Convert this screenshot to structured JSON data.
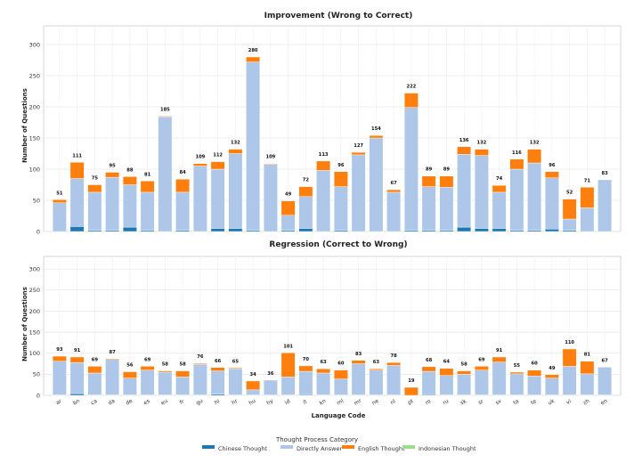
{
  "chart_data": [
    {
      "type": "bar",
      "stacked": true,
      "title": "Improvement (Wrong to Correct)",
      "xlabel": "",
      "ylabel": "Number of Questions",
      "ylim": [
        0,
        330
      ],
      "yticks": [
        0,
        50,
        100,
        150,
        200,
        250,
        300
      ],
      "grid": true,
      "categories": [
        "ar",
        "bn",
        "ca",
        "da",
        "de",
        "es",
        "eu",
        "fr",
        "gu",
        "hi",
        "hr",
        "hu",
        "hy",
        "id",
        "it",
        "kn",
        "ml",
        "mr",
        "ne",
        "nl",
        "pt",
        "ro",
        "ru",
        "sk",
        "sr",
        "sv",
        "ta",
        "te",
        "uk",
        "vi",
        "zh",
        "en"
      ],
      "totals": [
        51,
        111,
        75,
        95,
        88,
        81,
        185,
        84,
        109,
        112,
        132,
        280,
        109,
        49,
        72,
        113,
        96,
        127,
        154,
        67,
        222,
        89,
        89,
        136,
        132,
        74,
        116,
        132,
        96,
        52,
        71,
        83
      ],
      "series": [
        {
          "name": "Chinese Thought",
          "values": [
            1,
            8,
            2,
            2,
            7,
            2,
            1,
            2,
            1,
            5,
            5,
            2,
            1,
            2,
            5,
            1,
            2,
            1,
            1,
            1,
            2,
            2,
            2,
            7,
            5,
            5,
            2,
            2,
            4,
            2,
            1,
            1
          ]
        },
        {
          "name": "Directly Answer",
          "values": [
            45,
            77,
            61,
            85,
            68,
            61,
            183,
            61,
            104,
            95,
            120,
            270,
            107,
            24,
            51,
            97,
            70,
            122,
            149,
            62,
            197,
            70,
            69,
            117,
            117,
            58,
            98,
            108,
            82,
            18,
            37,
            82
          ]
        },
        {
          "name": "English Thought",
          "values": [
            5,
            26,
            12,
            8,
            13,
            18,
            1,
            21,
            4,
            12,
            7,
            8,
            1,
            23,
            16,
            15,
            24,
            4,
            4,
            4,
            23,
            17,
            18,
            12,
            10,
            11,
            16,
            22,
            10,
            32,
            33,
            0
          ]
        },
        {
          "name": "Indonesian Thought",
          "values": [
            0,
            0,
            0,
            0,
            0,
            0,
            0,
            0,
            0,
            0,
            0,
            0,
            0,
            0,
            0,
            0,
            0,
            0,
            0,
            0,
            0,
            0,
            0,
            0,
            0,
            0,
            0,
            0,
            0,
            0,
            0,
            0
          ]
        }
      ]
    },
    {
      "type": "bar",
      "stacked": true,
      "title": "Regression (Correct to Wrong)",
      "xlabel": "Language Code",
      "ylabel": "Number of Questions",
      "ylim": [
        0,
        330
      ],
      "yticks": [
        0,
        50,
        100,
        150,
        200,
        250,
        300
      ],
      "grid": true,
      "categories": [
        "ar",
        "bn",
        "ca",
        "da",
        "de",
        "es",
        "eu",
        "fr",
        "gu",
        "hi",
        "hr",
        "hu",
        "hy",
        "id",
        "it",
        "kn",
        "ml",
        "mr",
        "ne",
        "nl",
        "pt",
        "ro",
        "ru",
        "sk",
        "sr",
        "sv",
        "ta",
        "te",
        "uk",
        "vi",
        "zh",
        "en"
      ],
      "totals": [
        93,
        91,
        69,
        87,
        56,
        69,
        58,
        58,
        76,
        66,
        65,
        34,
        36,
        101,
        70,
        63,
        60,
        83,
        63,
        78,
        19,
        68,
        64,
        58,
        69,
        91,
        55,
        60,
        49,
        110,
        81,
        67
      ],
      "series": [
        {
          "name": "Chinese Thought",
          "values": [
            1,
            4,
            1,
            1,
            1,
            1,
            1,
            1,
            1,
            3,
            1,
            1,
            1,
            1,
            2,
            1,
            1,
            1,
            1,
            1,
            0,
            2,
            1,
            1,
            1,
            1,
            1,
            1,
            1,
            1,
            1,
            1
          ]
        },
        {
          "name": "Directly Answer",
          "values": [
            80,
            74,
            52,
            84,
            40,
            59,
            54,
            43,
            73,
            55,
            62,
            12,
            35,
            43,
            55,
            52,
            38,
            74,
            59,
            70,
            0,
            55,
            46,
            49,
            59,
            78,
            50,
            45,
            40,
            68,
            50,
            66
          ]
        },
        {
          "name": "English Thought",
          "values": [
            12,
            13,
            16,
            2,
            15,
            9,
            3,
            14,
            2,
            8,
            2,
            21,
            0,
            57,
            13,
            10,
            21,
            8,
            3,
            7,
            19,
            11,
            17,
            8,
            9,
            12,
            4,
            14,
            8,
            41,
            30,
            0
          ]
        },
        {
          "name": "Indonesian Thought",
          "values": [
            0,
            0,
            0,
            0,
            0,
            0,
            0,
            0,
            0,
            0,
            0,
            0,
            0,
            0,
            0,
            0,
            0,
            0,
            0,
            0,
            0,
            0,
            0,
            0,
            0,
            0,
            0,
            0,
            0,
            0,
            0,
            0
          ]
        }
      ]
    }
  ],
  "legend": {
    "title": "Thought Process Category",
    "items": [
      {
        "label": "Chinese Thought",
        "color": "#1f77b4"
      },
      {
        "label": "Directly Answer",
        "color": "#aec7e8"
      },
      {
        "label": "English Thought",
        "color": "#ff7f0e"
      },
      {
        "label": "Indonesian Thought",
        "color": "#98df8a"
      }
    ]
  }
}
